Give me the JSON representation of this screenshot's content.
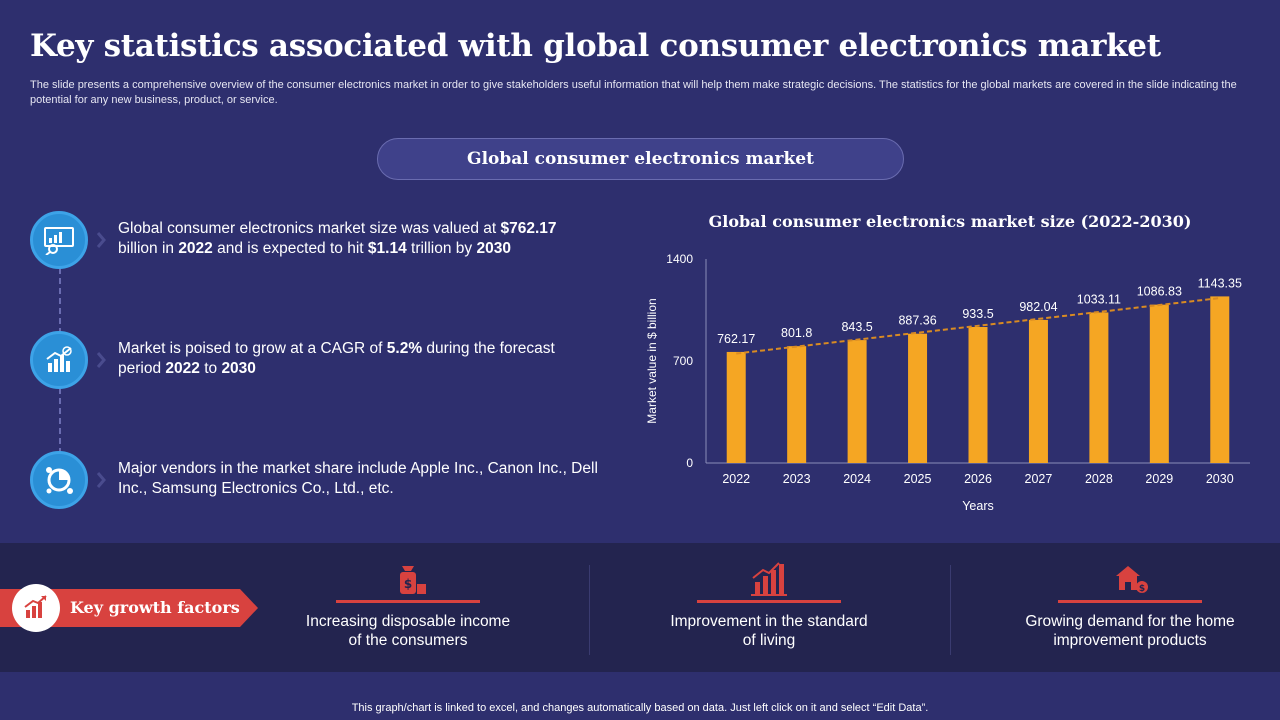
{
  "title": "Key statistics associated with global consumer electronics market",
  "subtitle": "The slide presents a comprehensive overview of the consumer electronics market in order to give stakeholders useful information that will help them make strategic decisions. The statistics for the global markets are covered in the slide indicating the potential for any new business, product, or service.",
  "section_pill": "Global consumer electronics market",
  "stats": [
    {
      "icon": "presentation-chart-icon",
      "parts": [
        {
          "t": "Global consumer electronics market size was valued at ",
          "b": false
        },
        {
          "t": "$762.17",
          "b": true
        },
        {
          "t": " billion in ",
          "b": false
        },
        {
          "t": "2022",
          "b": true
        },
        {
          "t": " and is expected to hit ",
          "b": false
        },
        {
          "t": "$1.14",
          "b": true
        },
        {
          "t": " trillion by ",
          "b": false
        },
        {
          "t": "2030",
          "b": true
        }
      ]
    },
    {
      "icon": "growth-chart-icon",
      "parts": [
        {
          "t": "Market is poised to grow at a CAGR of ",
          "b": false
        },
        {
          "t": "5.2%",
          "b": true
        },
        {
          "t": " during the forecast period ",
          "b": false
        },
        {
          "t": "2022",
          "b": true
        },
        {
          "t": " to ",
          "b": false
        },
        {
          "t": "2030",
          "b": true
        }
      ]
    },
    {
      "icon": "vendors-pie-icon",
      "parts": [
        {
          "t": "Major vendors in the market share include Apple Inc., Canon Inc., Dell Inc., Samsung Electronics Co., Ltd., etc.",
          "b": false
        }
      ]
    }
  ],
  "chart_data": {
    "type": "bar",
    "title": "Global consumer electronics market size (2022-2030)",
    "xlabel": "Years",
    "ylabel": "Market value in $ billion",
    "categories": [
      "2022",
      "2023",
      "2024",
      "2025",
      "2026",
      "2027",
      "2028",
      "2029",
      "2030"
    ],
    "values": [
      762.17,
      801.8,
      843.5,
      887.36,
      933.5,
      982.04,
      1033.11,
      1086.83,
      1143.35
    ],
    "value_labels": [
      "762.17",
      "801.8",
      "843.5",
      "887.36",
      "933.5",
      "982.04",
      "1033.11",
      "1086.83",
      "1143.35"
    ],
    "ylim": [
      0,
      1400
    ],
    "yticks": [
      0,
      700,
      1400
    ],
    "trendline": "linear dashed",
    "grid": false,
    "bar_color": "#f5a623",
    "trend_color": "#d98b22"
  },
  "growth": {
    "label": "Key growth factors",
    "factors": [
      {
        "icon": "money-bag-icon",
        "lines": [
          "Increasing disposable income",
          "of the consumers"
        ]
      },
      {
        "icon": "rising-bars-icon",
        "lines": [
          "Improvement in the standard",
          "of living"
        ]
      },
      {
        "icon": "home-products-icon",
        "lines": [
          "Growing demand for the home",
          "improvement products"
        ]
      }
    ]
  },
  "footer": "This graph/chart is linked to excel, and changes automatically based on data. Just left click on it and select “Edit Data”.",
  "colors": {
    "background": "#2e2f6e",
    "band": "#23244f",
    "accent_red": "#d8423f",
    "icon_blue": "#2a8fd6"
  }
}
